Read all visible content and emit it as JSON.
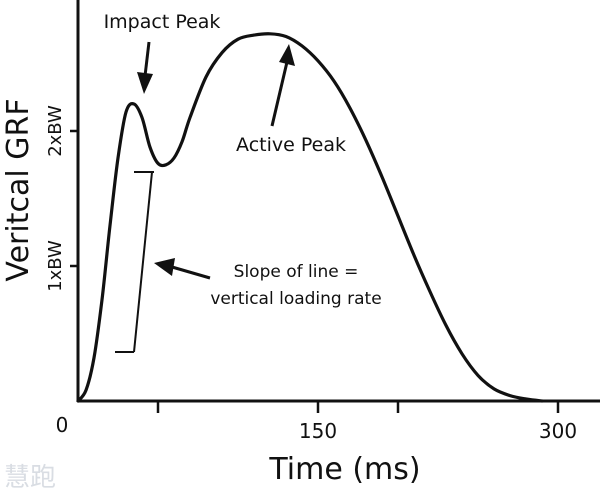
{
  "chart_data": {
    "type": "line",
    "xlabel": "Time (ms)",
    "ylabel": "Veritcal GRF",
    "origin_label": "0",
    "xlim": [
      0,
      320
    ],
    "ylim": [
      0,
      2.95
    ],
    "x_ticks": [
      {
        "value": 50,
        "label": ""
      },
      {
        "value": 150,
        "label": "150"
      },
      {
        "value": 200,
        "label": ""
      },
      {
        "value": 300,
        "label": "300"
      }
    ],
    "y_ticks": [
      {
        "value": 1,
        "label": "1xBW"
      },
      {
        "value": 2,
        "label": "2xBW"
      }
    ],
    "series": [
      {
        "x": [
          0,
          5,
          10,
          15,
          20,
          25,
          30,
          35,
          40,
          45,
          50,
          55,
          60,
          65,
          70,
          80,
          90,
          100,
          110,
          120,
          130,
          140,
          150,
          160,
          170,
          180,
          190,
          200,
          210,
          220,
          230,
          240,
          250,
          260,
          270,
          280,
          290
        ],
        "y": [
          0,
          0.08,
          0.32,
          0.75,
          1.3,
          1.8,
          2.14,
          2.2,
          2.1,
          1.88,
          1.76,
          1.75,
          1.8,
          1.92,
          2.1,
          2.4,
          2.58,
          2.68,
          2.71,
          2.72,
          2.7,
          2.63,
          2.52,
          2.37,
          2.17,
          1.93,
          1.66,
          1.37,
          1.08,
          0.81,
          0.56,
          0.35,
          0.19,
          0.09,
          0.04,
          0.015,
          0
        ]
      }
    ],
    "annotations": {
      "impact_peak": "Impact Peak",
      "active_peak": "Active Peak",
      "slope_line1": "Slope of line =",
      "slope_line2": "vertical loading rate"
    }
  },
  "watermark": "慧跑"
}
